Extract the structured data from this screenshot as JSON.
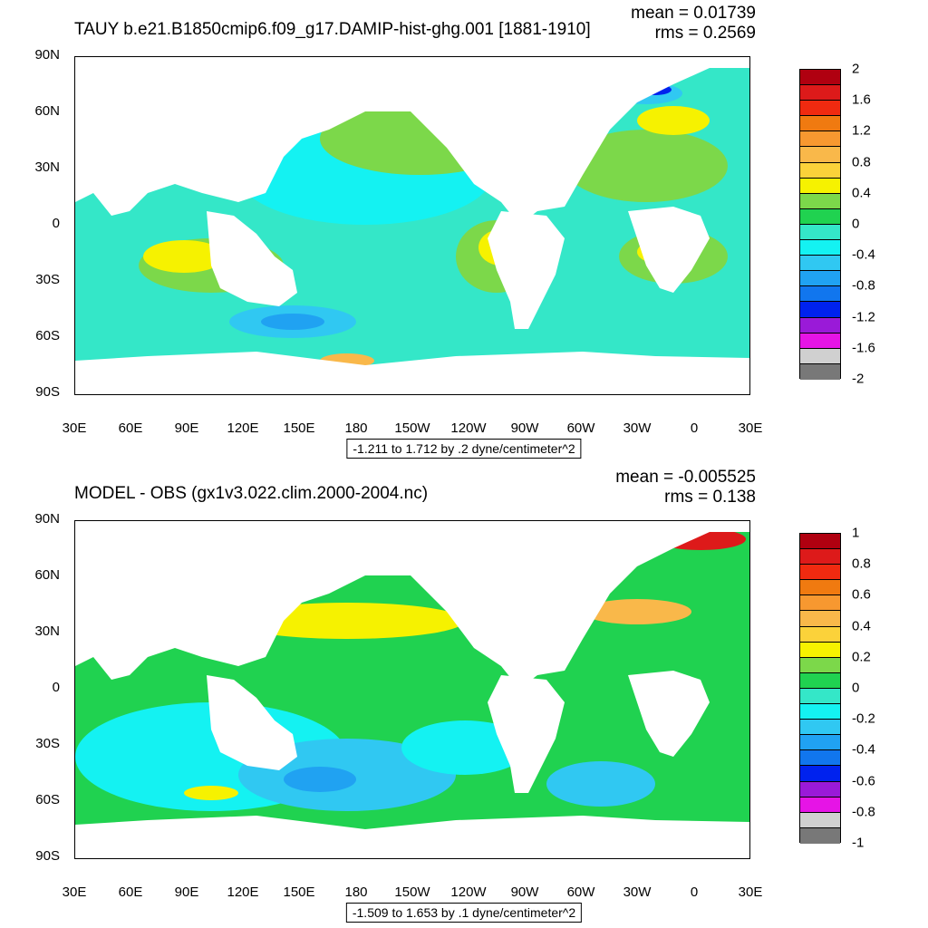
{
  "panels": [
    {
      "title": "TAUY b.e21.B1850cmip6.f09_g17.DAMIP-hist-ghg.001 [1881-1910]",
      "mean": "mean = 0.01739",
      "rms": "rms = 0.2569",
      "range_info": "-1.211 to 1.712 by .2 dyne/centimeter^2",
      "colorbar_labels": [
        "2",
        "1.6",
        "1.2",
        "0.8",
        "0.4",
        "0",
        "-0.4",
        "-0.8",
        "-1.2",
        "-1.6",
        "-2"
      ],
      "colorbar_colors": [
        "#b00010",
        "#dd1a1a",
        "#f02a10",
        "#f07a10",
        "#f79830",
        "#f9b84a",
        "#fbd23a",
        "#f6f200",
        "#7cd84a",
        "#20d250",
        "#34e7c8",
        "#14f2f2",
        "#30c8f2",
        "#20a2f2",
        "#1176ee",
        "#0022ee",
        "#9a1ad8",
        "#e614e6",
        "#d0d0d0",
        "#787878"
      ]
    },
    {
      "title": "MODEL - OBS (gx1v3.022.clim.2000-2004.nc)",
      "mean": "mean = -0.005525",
      "rms": "rms = 0.138",
      "range_info": "-1.509 to 1.653 by .1 dyne/centimeter^2",
      "colorbar_labels": [
        "1",
        "0.8",
        "0.6",
        "0.4",
        "0.2",
        "0",
        "-0.2",
        "-0.4",
        "-0.6",
        "-0.8",
        "-1"
      ],
      "colorbar_colors": [
        "#b00010",
        "#dd1a1a",
        "#f02a10",
        "#f07a10",
        "#f79830",
        "#f9b84a",
        "#fbd23a",
        "#f6f200",
        "#7cd84a",
        "#20d250",
        "#34e7c8",
        "#14f2f2",
        "#30c8f2",
        "#20a2f2",
        "#1176ee",
        "#0022ee",
        "#9a1ad8",
        "#e614e6",
        "#d0d0d0",
        "#787878"
      ]
    }
  ],
  "lat_labels": [
    "90N",
    "60N",
    "30N",
    "0",
    "30S",
    "60S",
    "90S"
  ],
  "lon_labels": [
    "30E",
    "60E",
    "90E",
    "120E",
    "150E",
    "180",
    "150W",
    "120W",
    "90W",
    "60W",
    "30W",
    "0",
    "30E"
  ],
  "colors": {
    "land": "#ffffff",
    "ocean_base": "#34e7c8"
  }
}
